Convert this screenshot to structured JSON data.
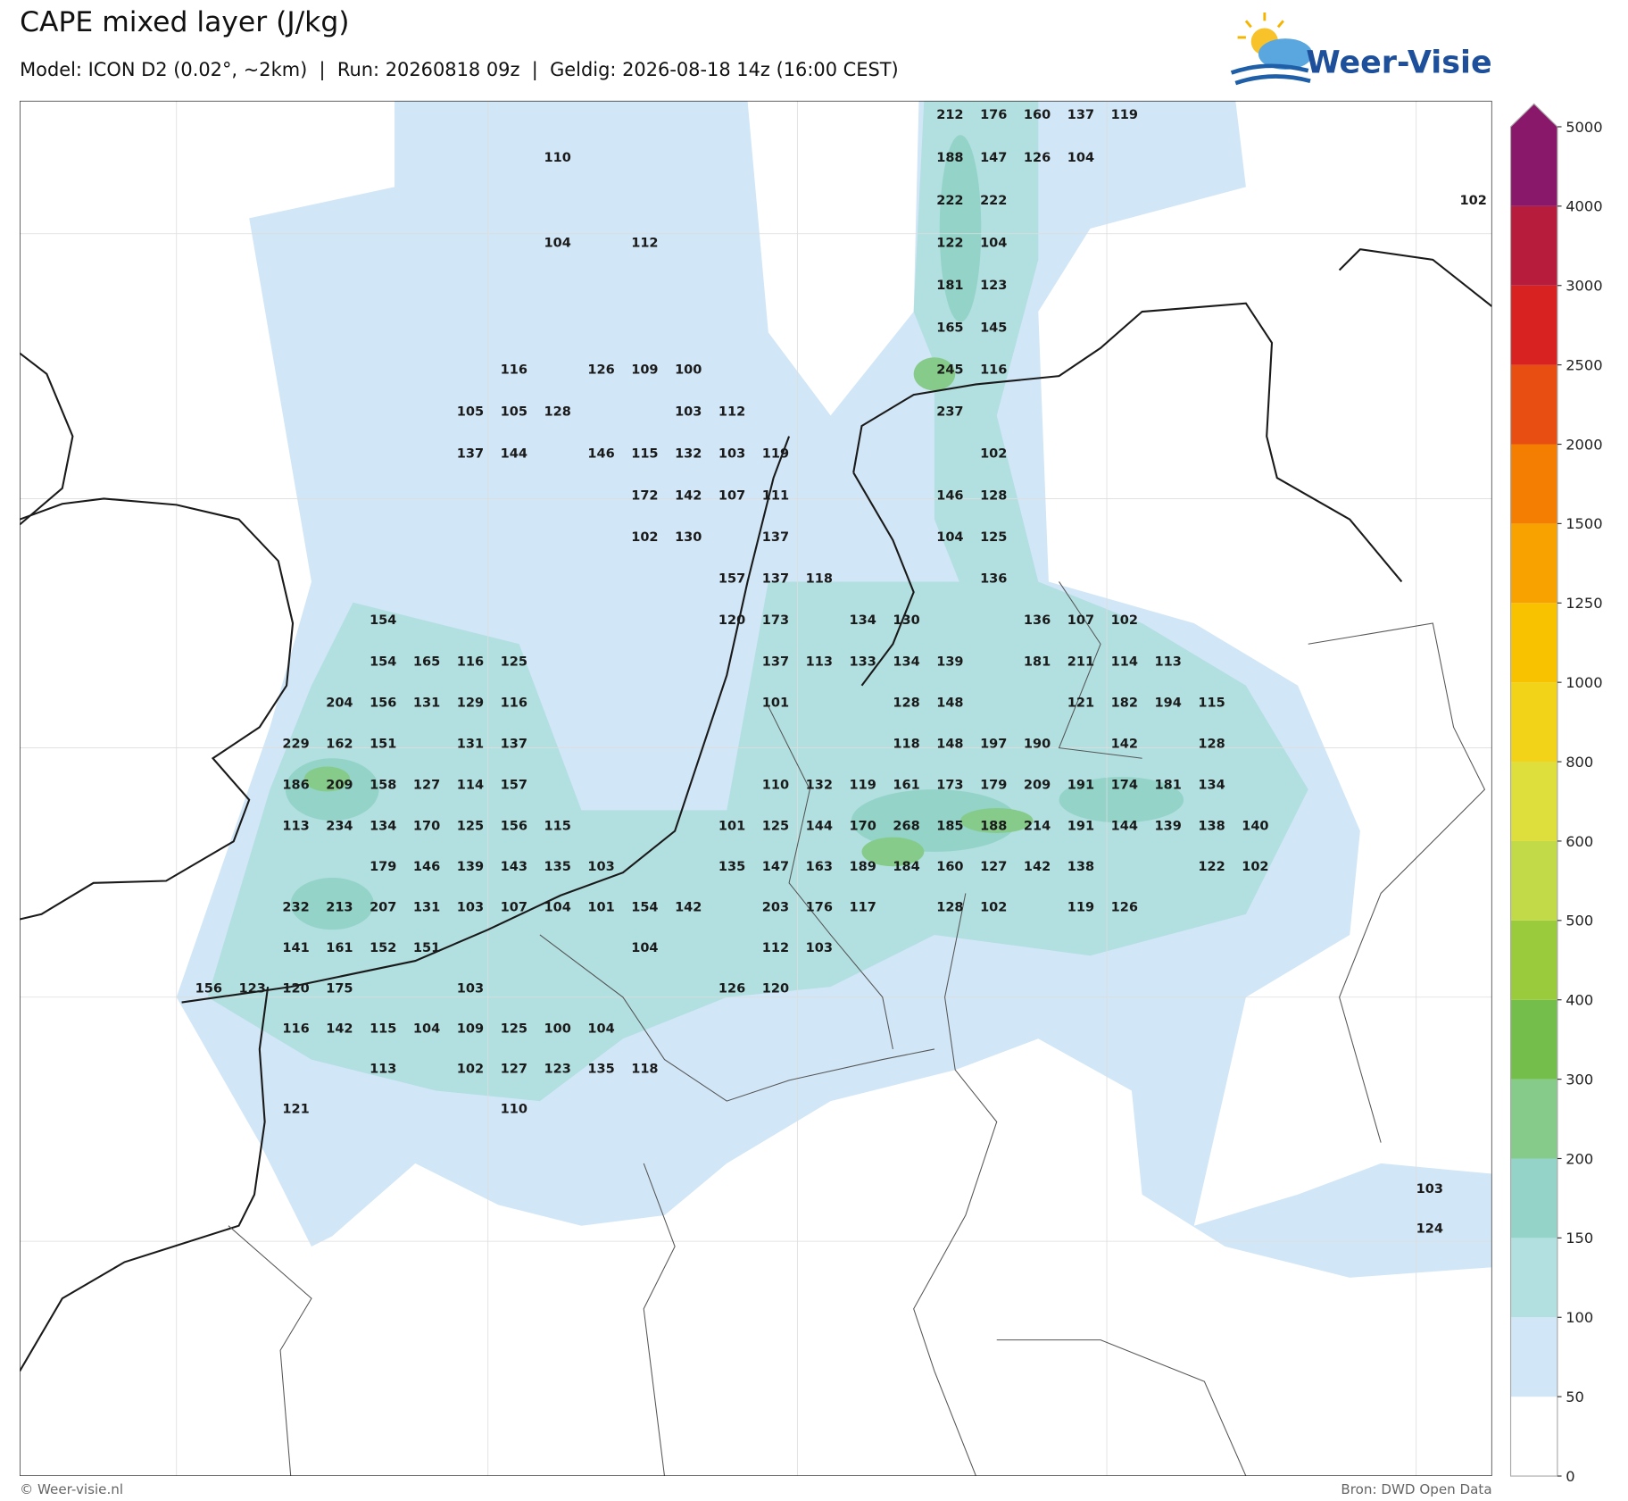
{
  "header": {
    "title": "CAPE mixed layer (J/kg)",
    "subtitle": "Model: ICON D2 (0.02°, ~2km)  |  Run: 20260818 09z  |  Geldig: 2026-08-18 14z (16:00 CEST)"
  },
  "logo": {
    "text": "Weer-Visie"
  },
  "map_labels": {
    "rows": [
      [
        null,
        null,
        null,
        null,
        null,
        null,
        null,
        null,
        null,
        null,
        null,
        null,
        null,
        null,
        null,
        null,
        null,
        212,
        176,
        160,
        137,
        119,
        null,
        null,
        null,
        null,
        null,
        null,
        null,
        null
      ],
      [
        null,
        null,
        null,
        null,
        null,
        null,
        null,
        null,
        110,
        null,
        null,
        null,
        null,
        null,
        null,
        null,
        null,
        188,
        147,
        126,
        104,
        null,
        null,
        null,
        null,
        null,
        null,
        null,
        null,
        null
      ],
      [
        null,
        null,
        null,
        null,
        null,
        null,
        null,
        null,
        null,
        null,
        null,
        null,
        null,
        null,
        null,
        null,
        null,
        222,
        222,
        null,
        null,
        null,
        null,
        null,
        null,
        null,
        null,
        null,
        null,
        102
      ],
      [
        null,
        null,
        null,
        null,
        null,
        null,
        null,
        null,
        104,
        null,
        112,
        null,
        null,
        null,
        null,
        null,
        null,
        122,
        104,
        null,
        null,
        null,
        null,
        null,
        null,
        null,
        null,
        null,
        null,
        null
      ],
      [
        null,
        null,
        null,
        null,
        null,
        null,
        null,
        null,
        null,
        null,
        null,
        null,
        null,
        null,
        null,
        null,
        null,
        181,
        123,
        null,
        null,
        null,
        null,
        null,
        null,
        null,
        null,
        null,
        null,
        null
      ],
      [
        null,
        null,
        null,
        null,
        null,
        null,
        null,
        null,
        null,
        null,
        null,
        null,
        null,
        null,
        null,
        null,
        null,
        165,
        145,
        null,
        null,
        null,
        null,
        null,
        null,
        null,
        null,
        null,
        null,
        null
      ],
      [
        null,
        null,
        null,
        null,
        null,
        null,
        null,
        116,
        null,
        126,
        109,
        100,
        null,
        null,
        null,
        null,
        null,
        245,
        116,
        null,
        null,
        null,
        null,
        null,
        null,
        null,
        null,
        null,
        null,
        null
      ],
      [
        null,
        null,
        null,
        null,
        null,
        null,
        105,
        105,
        128,
        null,
        null,
        103,
        112,
        null,
        null,
        null,
        null,
        237,
        null,
        null,
        null,
        null,
        null,
        null,
        null,
        null,
        null,
        null,
        null,
        null
      ],
      [
        null,
        null,
        null,
        null,
        null,
        null,
        137,
        144,
        null,
        146,
        115,
        132,
        103,
        119,
        null,
        null,
        null,
        null,
        102,
        null,
        null,
        null,
        null,
        null,
        null,
        null,
        null,
        null,
        null,
        null
      ],
      [
        null,
        null,
        null,
        null,
        null,
        null,
        null,
        null,
        null,
        null,
        172,
        142,
        107,
        111,
        null,
        null,
        null,
        146,
        128,
        null,
        null,
        null,
        null,
        null,
        null,
        null,
        null,
        null,
        null,
        null
      ],
      [
        null,
        null,
        null,
        null,
        null,
        null,
        null,
        null,
        null,
        null,
        102,
        130,
        null,
        137,
        null,
        null,
        null,
        104,
        125,
        null,
        null,
        null,
        null,
        null,
        null,
        null,
        null,
        null,
        null,
        null
      ],
      [
        null,
        null,
        null,
        null,
        null,
        null,
        null,
        null,
        null,
        null,
        null,
        null,
        157,
        137,
        118,
        null,
        null,
        null,
        136,
        null,
        null,
        null,
        null,
        null,
        null,
        null,
        null,
        null,
        null,
        null
      ],
      [
        null,
        null,
        null,
        null,
        154,
        null,
        null,
        null,
        null,
        null,
        null,
        null,
        120,
        173,
        null,
        134,
        130,
        null,
        null,
        136,
        107,
        102,
        null,
        null,
        null,
        null,
        null,
        null,
        null,
        null
      ],
      [
        null,
        null,
        null,
        null,
        154,
        165,
        116,
        125,
        null,
        null,
        null,
        null,
        null,
        137,
        113,
        133,
        134,
        139,
        null,
        181,
        211,
        114,
        113,
        null,
        null,
        null,
        null,
        null,
        null,
        null
      ],
      [
        null,
        null,
        null,
        204,
        156,
        131,
        129,
        116,
        null,
        null,
        null,
        null,
        null,
        101,
        null,
        null,
        128,
        148,
        null,
        null,
        121,
        182,
        194,
        115,
        null,
        null,
        null,
        null,
        null,
        null
      ],
      [
        null,
        null,
        229,
        162,
        151,
        null,
        131,
        137,
        null,
        null,
        null,
        null,
        null,
        null,
        null,
        null,
        118,
        148,
        197,
        190,
        null,
        142,
        null,
        128,
        null,
        null,
        null,
        null,
        null,
        null
      ],
      [
        null,
        null,
        186,
        209,
        158,
        127,
        114,
        157,
        null,
        null,
        null,
        null,
        null,
        110,
        132,
        119,
        161,
        173,
        179,
        209,
        191,
        174,
        181,
        134,
        null,
        null,
        null,
        null,
        null,
        null
      ],
      [
        null,
        null,
        113,
        234,
        134,
        170,
        125,
        156,
        115,
        null,
        null,
        null,
        101,
        125,
        144,
        170,
        268,
        185,
        188,
        214,
        191,
        144,
        139,
        138,
        140,
        null,
        null,
        null,
        null,
        null
      ],
      [
        null,
        null,
        null,
        null,
        179,
        146,
        139,
        143,
        135,
        103,
        null,
        null,
        135,
        147,
        163,
        189,
        184,
        160,
        127,
        142,
        138,
        null,
        null,
        122,
        102,
        null,
        null,
        null,
        null,
        null
      ],
      [
        null,
        null,
        232,
        213,
        207,
        131,
        103,
        107,
        104,
        101,
        154,
        142,
        null,
        203,
        176,
        117,
        null,
        128,
        102,
        null,
        119,
        126,
        null,
        null,
        null,
        null,
        null,
        null,
        null,
        null
      ],
      [
        null,
        null,
        141,
        161,
        152,
        151,
        null,
        null,
        null,
        null,
        104,
        null,
        null,
        112,
        103,
        null,
        null,
        null,
        null,
        null,
        null,
        null,
        null,
        null,
        null,
        null,
        null,
        null,
        null,
        null
      ],
      [
        156,
        123,
        120,
        175,
        null,
        null,
        103,
        null,
        null,
        null,
        null,
        null,
        126,
        120,
        null,
        null,
        null,
        null,
        null,
        null,
        null,
        null,
        null,
        null,
        null,
        null,
        null,
        null,
        null,
        null
      ],
      [
        null,
        null,
        116,
        142,
        115,
        104,
        109,
        125,
        100,
        104,
        null,
        null,
        null,
        null,
        null,
        null,
        null,
        null,
        null,
        null,
        null,
        null,
        null,
        null,
        null,
        null,
        null,
        null,
        null,
        null
      ],
      [
        null,
        null,
        null,
        null,
        113,
        null,
        102,
        127,
        123,
        135,
        118,
        null,
        null,
        null,
        null,
        null,
        null,
        null,
        null,
        null,
        null,
        null,
        null,
        null,
        null,
        null,
        null,
        null,
        null,
        null
      ],
      [
        null,
        null,
        121,
        null,
        null,
        null,
        null,
        110,
        null,
        null,
        null,
        null,
        null,
        null,
        null,
        null,
        null,
        null,
        null,
        null,
        null,
        null,
        null,
        null,
        null,
        null,
        null,
        null,
        null,
        null
      ],
      [
        null,
        null,
        null,
        null,
        null,
        null,
        null,
        null,
        null,
        null,
        null,
        null,
        null,
        null,
        null,
        null,
        null,
        null,
        null,
        null,
        null,
        null,
        null,
        null,
        null,
        null,
        null,
        null,
        null,
        null
      ],
      [
        null,
        null,
        null,
        null,
        null,
        null,
        null,
        null,
        null,
        null,
        null,
        null,
        null,
        null,
        null,
        null,
        null,
        null,
        null,
        null,
        null,
        null,
        null,
        null,
        null,
        null,
        null,
        null,
        103,
        null
      ],
      [
        null,
        null,
        null,
        null,
        null,
        null,
        null,
        null,
        null,
        null,
        null,
        null,
        null,
        null,
        null,
        null,
        null,
        null,
        null,
        null,
        null,
        null,
        null,
        null,
        null,
        null,
        null,
        null,
        124,
        null
      ]
    ]
  },
  "colorbar": {
    "levels": [
      0,
      50,
      100,
      150,
      200,
      300,
      400,
      500,
      600,
      800,
      1000,
      1250,
      1500,
      2000,
      2500,
      3000,
      4000,
      5000
    ],
    "colors": [
      "#ffffff",
      "#d1e6f6",
      "#b2dfe0",
      "#93d3c8",
      "#86cb8a",
      "#74bf4c",
      "#9acb3c",
      "#c2da48",
      "#dede3c",
      "#f2d318",
      "#f8c200",
      "#f8a200",
      "#f47e02",
      "#e84e12",
      "#d82222",
      "#b81c3c",
      "#8a186a"
    ]
  },
  "footer": {
    "left": "© Weer-visie.nl",
    "right": "Bron: DWD Open Data"
  }
}
